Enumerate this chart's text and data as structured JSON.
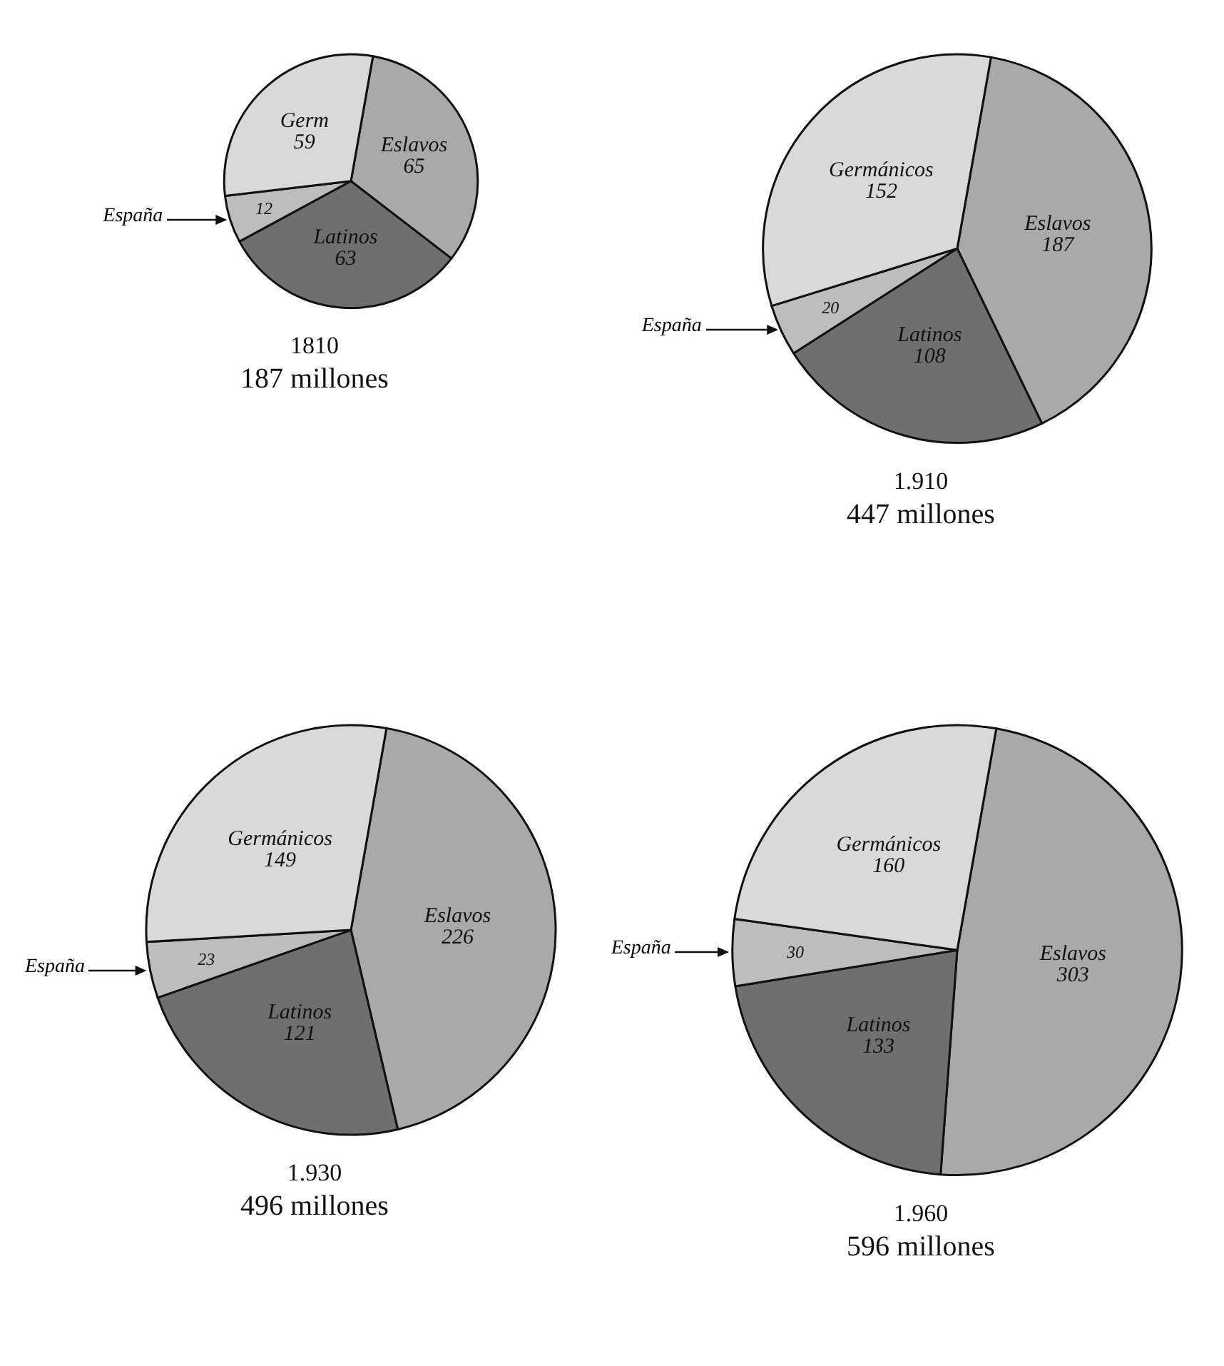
{
  "chart_data": [
    {
      "type": "pie",
      "title": "1810",
      "subtitle": "187 millones",
      "categories": [
        "Eslavos",
        "Latinos",
        "España",
        "Germ"
      ],
      "values": [
        65,
        63,
        12,
        59
      ],
      "colors": [
        "#a9a9a9",
        "#6f6f6f",
        "#bdbdbd",
        "#d9d9d9"
      ],
      "data_labels": true
    },
    {
      "type": "pie",
      "title": "1.910",
      "subtitle": "447 millones",
      "categories": [
        "Eslavos",
        "Latinos",
        "España",
        "Germánicos"
      ],
      "values": [
        187,
        108,
        20,
        152
      ],
      "colors": [
        "#a9a9a9",
        "#6f6f6f",
        "#bdbdbd",
        "#d9d9d9"
      ],
      "data_labels": true
    },
    {
      "type": "pie",
      "title": "1.930",
      "subtitle": "496 millones",
      "categories": [
        "Eslavos",
        "Latinos",
        "España",
        "Germánicos"
      ],
      "values": [
        226,
        121,
        23,
        149
      ],
      "colors": [
        "#a9a9a9",
        "#6f6f6f",
        "#bdbdbd",
        "#d9d9d9"
      ],
      "data_labels": true
    },
    {
      "type": "pie",
      "title": "1.960",
      "subtitle": "596 millones",
      "categories": [
        "Eslavos",
        "Latinos",
        "España",
        "Germánicos"
      ],
      "values": [
        303,
        133,
        30,
        160
      ],
      "colors": [
        "#a9a9a9",
        "#6f6f6f",
        "#bdbdbd",
        "#d9d9d9"
      ],
      "data_labels": true
    }
  ]
}
